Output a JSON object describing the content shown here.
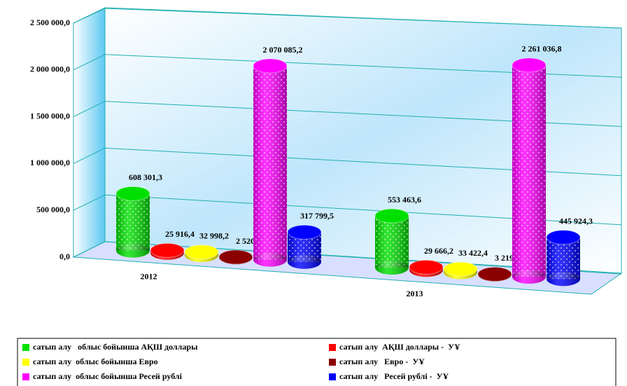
{
  "chart_data": {
    "type": "bar3d",
    "categories": [
      "2012",
      "2013"
    ],
    "series": [
      {
        "name": "сатып алу   облыс бойынша АҚШ доллары",
        "color": "#00e000",
        "values": [
          608301.3,
          553463.6
        ],
        "value_labels": [
          "608 301,3",
          "553 463,6"
        ]
      },
      {
        "name": "сатып алу  АҚШ доллары -  УҰ",
        "color": "#ff0000",
        "values": [
          25916.4,
          29666.2
        ],
        "value_labels": [
          "25 916,4",
          "29 666,2"
        ]
      },
      {
        "name": "сатып алу  облыс бойынша Евро",
        "color": "#ffff00",
        "values": [
          32998.2,
          33422.4
        ],
        "value_labels": [
          "32 998,2",
          "33 422,4"
        ]
      },
      {
        "name": "сатып алу   Евро -  УҰ",
        "color": "#8b0000",
        "values": [
          2520.6,
          3219.5
        ],
        "value_labels": [
          "2 520,6",
          "3 219,5"
        ]
      },
      {
        "name": "сатып алу  облыс бойынша Ресей рублі",
        "color": "#ff00ff",
        "values": [
          2070085.2,
          2261036.8
        ],
        "value_labels": [
          "2 070 085,2",
          "2 261 036,8"
        ]
      },
      {
        "name": "сатып алу   Ресей рублі -  УҰ",
        "color": "#0000ff",
        "values": [
          317799.5,
          445924.3
        ],
        "value_labels": [
          "317 799,5",
          "445 924,3"
        ]
      }
    ],
    "ylim": [
      0,
      2500000
    ],
    "yticks": [
      {
        "value": 0,
        "label": "0,0"
      },
      {
        "value": 500000,
        "label": "500 000,0"
      },
      {
        "value": 1000000,
        "label": "1 000 000,0"
      },
      {
        "value": 1500000,
        "label": "1 500 000,0"
      },
      {
        "value": 2000000,
        "label": "2 000 000,0"
      },
      {
        "value": 2500000,
        "label": "2 500 000,0"
      }
    ],
    "grid": true,
    "legend": "bottom"
  }
}
